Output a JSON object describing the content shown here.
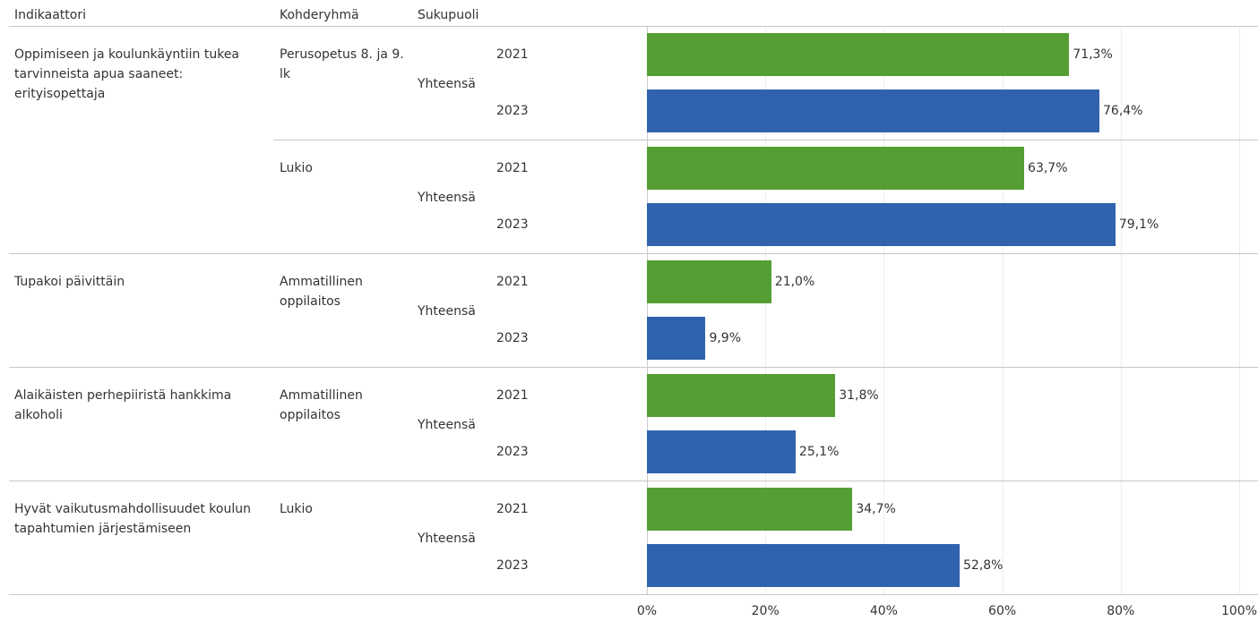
{
  "chart_data": {
    "type": "bar",
    "headers": [
      "Indikaattori",
      "Kohderyhmä",
      "Sukupuoli"
    ],
    "colors": [
      "#559e34",
      "#3063ae"
    ],
    "xlim": [
      0,
      100
    ],
    "xticks": [
      {
        "value": 0,
        "label": "0%"
      },
      {
        "value": 20,
        "label": "20%"
      },
      {
        "value": 40,
        "label": "40%"
      },
      {
        "value": 60,
        "label": "60%"
      },
      {
        "value": 80,
        "label": "80%"
      },
      {
        "value": 100,
        "label": "100%"
      }
    ],
    "grid": true,
    "indicators": [
      {
        "label": "Oppimiseen ja koulunkäyntiin tukea tarvinneista apua saaneet: erityisopettaja",
        "groups": [
          {
            "target": "Perusopetus 8. ja 9. lk",
            "gender": "Yhteensä",
            "years": [
              "2021",
              "2023"
            ],
            "values": [
              71.3,
              76.4
            ],
            "value_labels": [
              "71,3%",
              "76,4%"
            ]
          },
          {
            "target": "Lukio",
            "gender": "Yhteensä",
            "years": [
              "2021",
              "2023"
            ],
            "values": [
              63.7,
              79.1
            ],
            "value_labels": [
              "63,7%",
              "79,1%"
            ]
          }
        ]
      },
      {
        "label": "Tupakoi päivittäin",
        "groups": [
          {
            "target": "Ammatillinen oppilaitos",
            "gender": "Yhteensä",
            "years": [
              "2021",
              "2023"
            ],
            "values": [
              21.0,
              9.9
            ],
            "value_labels": [
              "21,0%",
              "9,9%"
            ]
          }
        ]
      },
      {
        "label": "Alaikäisten perhepiiristä hankkima alkoholi",
        "groups": [
          {
            "target": "Ammatillinen oppilaitos",
            "gender": "Yhteensä",
            "years": [
              "2021",
              "2023"
            ],
            "values": [
              31.8,
              25.1
            ],
            "value_labels": [
              "31,8%",
              "25,1%"
            ]
          }
        ]
      },
      {
        "label": "Hyvät vaikutusmahdollisuudet koulun tapahtumien järjestämiseen",
        "groups": [
          {
            "target": "Lukio",
            "gender": "Yhteensä",
            "years": [
              "2021",
              "2023"
            ],
            "values": [
              34.7,
              52.8
            ],
            "value_labels": [
              "34,7%",
              "52,8%"
            ]
          }
        ]
      }
    ]
  }
}
